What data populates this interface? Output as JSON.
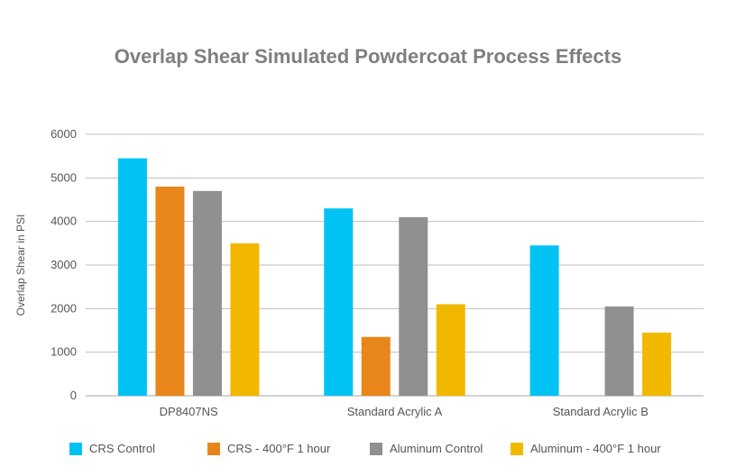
{
  "chart_data": {
    "type": "bar",
    "title": "Overlap Shear Simulated Powdercoat Process Effects",
    "xlabel": "",
    "ylabel": "Overlap Shear in PSI",
    "ylim": [
      0,
      6000
    ],
    "yticks": [
      0,
      1000,
      2000,
      3000,
      4000,
      5000,
      6000
    ],
    "grid": true,
    "legend_position": "bottom",
    "categories": [
      "DP8407NS",
      "Standard Acrylic A",
      "Standard Acrylic B"
    ],
    "series": [
      {
        "name": "CRS Control",
        "color": "#00c3f3",
        "values": [
          5450,
          4300,
          3450
        ]
      },
      {
        "name": "CRS - 400°F 1 hour",
        "color": "#e8861a",
        "values": [
          4800,
          1350,
          0
        ]
      },
      {
        "name": "Aluminum Control",
        "color": "#909090",
        "values": [
          4700,
          4100,
          2050
        ]
      },
      {
        "name": "Aluminum - 400°F 1 hour",
        "color": "#f2b800",
        "values": [
          3500,
          2100,
          1450
        ]
      }
    ]
  }
}
